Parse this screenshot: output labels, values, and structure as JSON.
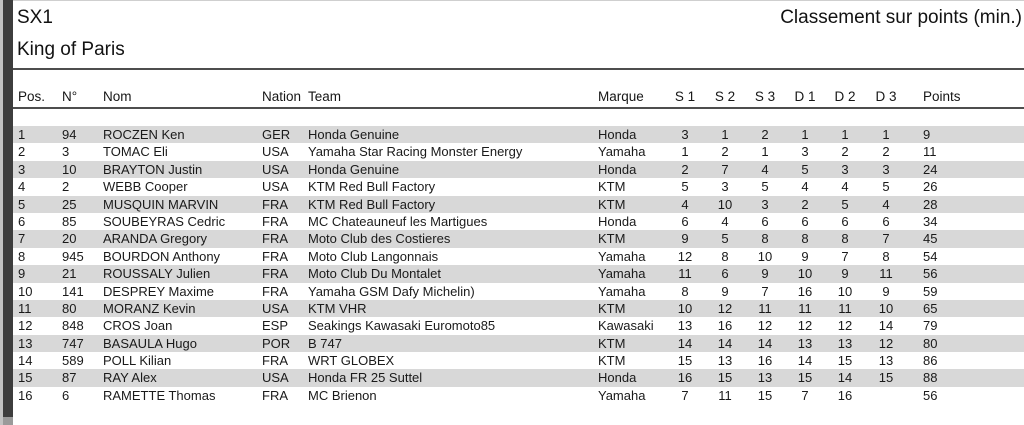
{
  "header": {
    "series": "SX1",
    "event": "King of Paris",
    "classification": "Classement sur points (min.)"
  },
  "table": {
    "columns": [
      {
        "key": "pos",
        "label": "Pos.",
        "align": "pos"
      },
      {
        "key": "num",
        "label": "N°",
        "align": "left"
      },
      {
        "key": "name",
        "label": "Nom",
        "align": "left"
      },
      {
        "key": "nation",
        "label": "Nation",
        "align": "left"
      },
      {
        "key": "team",
        "label": "Team",
        "align": "left"
      },
      {
        "key": "marque",
        "label": "Marque",
        "align": "left"
      },
      {
        "key": "s1",
        "label": "S 1",
        "align": "center"
      },
      {
        "key": "s2",
        "label": "S 2",
        "align": "center"
      },
      {
        "key": "s3",
        "label": "S 3",
        "align": "center"
      },
      {
        "key": "d1",
        "label": "D 1",
        "align": "center"
      },
      {
        "key": "d2",
        "label": "D 2",
        "align": "center"
      },
      {
        "key": "d3",
        "label": "D 3",
        "align": "center"
      },
      {
        "key": "points",
        "label": "Points",
        "align": "points"
      }
    ],
    "rows": [
      [
        "1",
        "94",
        "ROCZEN Ken",
        "GER",
        "Honda Genuine",
        "Honda",
        "3",
        "1",
        "2",
        "1",
        "1",
        "1",
        "9"
      ],
      [
        "2",
        "3",
        "TOMAC Eli",
        "USA",
        "Yamaha Star Racing Monster Energy",
        "Yamaha",
        "1",
        "2",
        "1",
        "3",
        "2",
        "2",
        "11"
      ],
      [
        "3",
        "10",
        "BRAYTON Justin",
        "USA",
        "Honda Genuine",
        "Honda",
        "2",
        "7",
        "4",
        "5",
        "3",
        "3",
        "24"
      ],
      [
        "4",
        "2",
        "WEBB Cooper",
        "USA",
        "KTM Red Bull Factory",
        "KTM",
        "5",
        "3",
        "5",
        "4",
        "4",
        "5",
        "26"
      ],
      [
        "5",
        "25",
        "MUSQUIN MARVIN",
        "FRA",
        "KTM Red Bull Factory",
        "KTM",
        "4",
        "10",
        "3",
        "2",
        "5",
        "4",
        "28"
      ],
      [
        "6",
        "85",
        "SOUBEYRAS Cedric",
        "FRA",
        "MC Chateauneuf les Martigues",
        "Honda",
        "6",
        "4",
        "6",
        "6",
        "6",
        "6",
        "34"
      ],
      [
        "7",
        "20",
        "ARANDA Gregory",
        "FRA",
        "Moto Club des Costieres",
        "KTM",
        "9",
        "5",
        "8",
        "8",
        "8",
        "7",
        "45"
      ],
      [
        "8",
        "945",
        "BOURDON Anthony",
        "FRA",
        "Moto Club Langonnais",
        "Yamaha",
        "12",
        "8",
        "10",
        "9",
        "7",
        "8",
        "54"
      ],
      [
        "9",
        "21",
        "ROUSSALY Julien",
        "FRA",
        "Moto Club Du Montalet",
        "Yamaha",
        "11",
        "6",
        "9",
        "10",
        "9",
        "11",
        "56"
      ],
      [
        "10",
        "141",
        "DESPREY Maxime",
        "FRA",
        "Yamaha GSM Dafy Michelin)",
        "Yamaha",
        "8",
        "9",
        "7",
        "16",
        "10",
        "9",
        "59"
      ],
      [
        "11",
        "80",
        "MORANZ Kevin",
        "USA",
        "KTM VHR",
        "KTM",
        "10",
        "12",
        "11",
        "11",
        "11",
        "10",
        "65"
      ],
      [
        "12",
        "848",
        "CROS Joan",
        "ESP",
        "Seakings Kawasaki Euromoto85",
        "Kawasaki",
        "13",
        "16",
        "12",
        "12",
        "12",
        "14",
        "79"
      ],
      [
        "13",
        "747",
        "BASAULA Hugo",
        "POR",
        "B 747",
        "KTM",
        "14",
        "14",
        "14",
        "13",
        "13",
        "12",
        "80"
      ],
      [
        "14",
        "589",
        "POLL Kilian",
        "FRA",
        "WRT GLOBEX",
        "KTM",
        "15",
        "13",
        "16",
        "14",
        "15",
        "13",
        "86"
      ],
      [
        "15",
        "87",
        "RAY Alex",
        "USA",
        "Honda FR 25 Suttel",
        "Honda",
        "16",
        "15",
        "13",
        "15",
        "14",
        "15",
        "88"
      ],
      [
        "16",
        "6",
        "RAMETTE Thomas",
        "FRA",
        "MC Brienon",
        "Yamaha",
        "7",
        "11",
        "15",
        "7",
        "16",
        "",
        "56"
      ]
    ]
  },
  "colors": {
    "stripe": "#d8d8d8",
    "rule": "#4e4e4e",
    "edge_bar": "#3d3d3d"
  }
}
